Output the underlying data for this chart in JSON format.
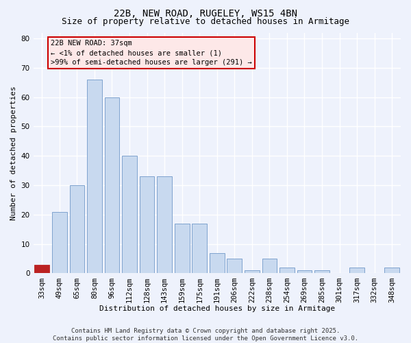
{
  "title1": "22B, NEW ROAD, RUGELEY, WS15 4BN",
  "title2": "Size of property relative to detached houses in Armitage",
  "xlabel": "Distribution of detached houses by size in Armitage",
  "ylabel": "Number of detached properties",
  "categories": [
    "33sqm",
    "49sqm",
    "65sqm",
    "80sqm",
    "96sqm",
    "112sqm",
    "128sqm",
    "143sqm",
    "159sqm",
    "175sqm",
    "191sqm",
    "206sqm",
    "222sqm",
    "238sqm",
    "254sqm",
    "269sqm",
    "285sqm",
    "301sqm",
    "317sqm",
    "332sqm",
    "348sqm"
  ],
  "values": [
    3,
    21,
    30,
    66,
    60,
    40,
    33,
    33,
    17,
    17,
    7,
    5,
    1,
    5,
    2,
    1,
    1,
    0,
    2,
    0,
    2
  ],
  "bar_color": "#c8d9ef",
  "bar_edge_color": "#7098c8",
  "ylim": [
    0,
    82
  ],
  "yticks": [
    0,
    10,
    20,
    30,
    40,
    50,
    60,
    70,
    80
  ],
  "annotation_box_text": "22B NEW ROAD: 37sqm\n← <1% of detached houses are smaller (1)\n>99% of semi-detached houses are larger (291) →",
  "annotation_box_facecolor": "#fde8e8",
  "annotation_box_edge_color": "#cc0000",
  "highlight_bar_index": 0,
  "highlight_bar_color": "#bb2222",
  "footer_text": "Contains HM Land Registry data © Crown copyright and database right 2025.\nContains public sector information licensed under the Open Government Licence v3.0.",
  "background_color": "#eef2fc",
  "grid_color": "#ffffff",
  "title_fontsize": 10,
  "subtitle_fontsize": 9,
  "axis_label_fontsize": 8,
  "tick_fontsize": 7.5,
  "annotation_fontsize": 7.5,
  "footer_fontsize": 6.5
}
